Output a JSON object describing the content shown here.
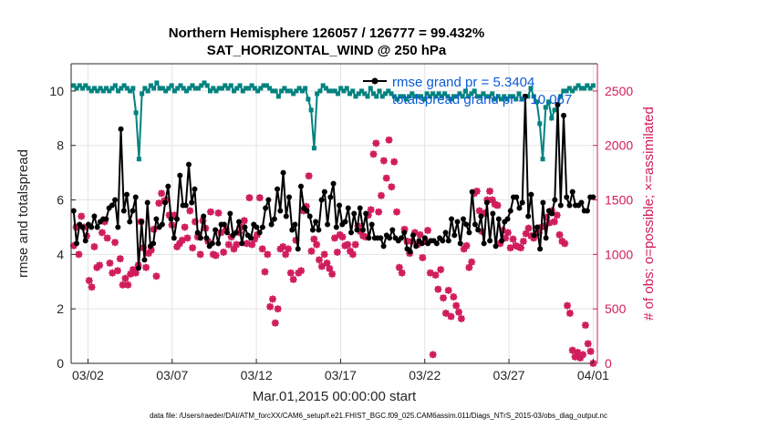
{
  "chart_data": {
    "type": "line",
    "title": "Northern Hemisphere 126057 / 126777 = 99.432%",
    "subtitle": "SAT_HORIZONTAL_WIND @ 250 hPa",
    "xlabel": "Mar.01,2015 00:00:00 start",
    "ylabel_left": "rmse and totalspread",
    "ylabel_right": "# of obs: o=possible; ×=assimilated",
    "x_tick_labels": [
      "03/02",
      "03/07",
      "03/12",
      "03/17",
      "03/22",
      "03/27",
      "04/01"
    ],
    "x_tick_days": [
      1,
      6,
      11,
      16,
      21,
      26,
      31
    ],
    "xlim_days": [
      0,
      31.25
    ],
    "y_left_ticks": [
      0,
      2,
      4,
      6,
      8,
      10
    ],
    "y_left_lim": [
      0,
      11
    ],
    "y_right_ticks": [
      0,
      500,
      1000,
      1500,
      2000,
      2500
    ],
    "y_right_lim": [
      0,
      2750
    ],
    "grid": true,
    "legend_position": "top-right",
    "colors": {
      "rmse": "#000000",
      "totalspread": "#00827f",
      "obs": "#d01c5c",
      "legend_text": "#0a5bd6",
      "right_axis": "#d01c5c"
    },
    "series": [
      {
        "name": "rmse grand pr = 5.3404",
        "axis": "left",
        "values": [
          5.6,
          4.4,
          5.1,
          5.0,
          4.5,
          5.1,
          5.0,
          5.4,
          5.0,
          5.2,
          5.3,
          5.3,
          5.7,
          5.8,
          6.0,
          5.0,
          8.6,
          5.6,
          6.2,
          5.2,
          5.6,
          6.1,
          3.5,
          5.2,
          3.8,
          5.9,
          4.3,
          4.4,
          5.3,
          5.0,
          5.1,
          5.9,
          6.5,
          5.3,
          4.6,
          5.3,
          6.9,
          5.8,
          5.8,
          7.3,
          5.9,
          6.4,
          4.8,
          4.6,
          5.4,
          4.6,
          4.3,
          4.4,
          4.9,
          4.4,
          5.1,
          5.1,
          4.8,
          5.5,
          4.7,
          4.8,
          5.2,
          4.4,
          5.0,
          4.7,
          4.6,
          5.1,
          5.0,
          4.8,
          5.0,
          5.7,
          6.0,
          5.1,
          5.3,
          6.4,
          5.6,
          7.0,
          5.4,
          6.1,
          4.9,
          5.1,
          4.2,
          6.5,
          5.7,
          5.6,
          5.4,
          4.9,
          5.2,
          4.9,
          6.0,
          6.3,
          5.1,
          6.1,
          6.6,
          5.0,
          5.8,
          5.1,
          5.2,
          5.7,
          4.8,
          5.5,
          4.9,
          5.7,
          4.9,
          5.5,
          4.6,
          5.1,
          4.6,
          4.6,
          4.6,
          4.3,
          4.7,
          4.6,
          4.9,
          4.6,
          4.5,
          4.6,
          4.8,
          4.2,
          4.1,
          4.7,
          4.3,
          4.5,
          4.4,
          4.6,
          4.4,
          4.5,
          4.5,
          4.4,
          4.6,
          4.5,
          4.8,
          4.5,
          5.3,
          4.7,
          5.2,
          4.4,
          5.3,
          5.1,
          4.8,
          6.3,
          5.1,
          4.9,
          5.4,
          4.4,
          5.9,
          4.5,
          5.5,
          4.3,
          5.3,
          4.5,
          5.2,
          5.3,
          5.6,
          6.1,
          6.1,
          5.7,
          5.9,
          9.8,
          5.4,
          6.2,
          4.7,
          5.0,
          4.2,
          5.9,
          4.6,
          5.6,
          5.5,
          6.0,
          9.5,
          5.8,
          9.1,
          6.1,
          5.8,
          6.3,
          5.8,
          5.8,
          5.9,
          5.6,
          5.6,
          6.1,
          6.1
        ]
      },
      {
        "name": "totalspread grand pr = 10.067",
        "axis": "left",
        "values": [
          10.2,
          10.1,
          10.2,
          10.1,
          10.2,
          10.1,
          10.0,
          10.1,
          10.0,
          10.1,
          10.0,
          10.1,
          10.0,
          10.1,
          10.2,
          10.0,
          10.1,
          10.2,
          10.1,
          10.0,
          10.1,
          9.2,
          7.5,
          9.9,
          10.1,
          10.0,
          10.2,
          10.1,
          10.3,
          10.1,
          10.1,
          10.0,
          10.1,
          10.2,
          10.0,
          10.1,
          10.2,
          10.1,
          10.0,
          10.1,
          10.2,
          10.1,
          10.1,
          10.2,
          10.3,
          10.2,
          10.0,
          10.1,
          10.0,
          10.1,
          10.1,
          10.2,
          10.1,
          10.2,
          10.0,
          10.1,
          10.2,
          10.0,
          10.1,
          10.1,
          10.2,
          10.1,
          10.0,
          10.1,
          10.2,
          10.2,
          10.1,
          10.0,
          10.0,
          9.8,
          10.0,
          10.1,
          10.0,
          10.0,
          9.9,
          10.0,
          10.1,
          10.0,
          10.1,
          9.7,
          9.3,
          7.9,
          9.9,
          10.0,
          10.2,
          10.1,
          10.0,
          10.0,
          10.0,
          9.9,
          10.1,
          10.0,
          10.1,
          9.9,
          10.0,
          9.8,
          9.9,
          10.0,
          9.9,
          9.8,
          10.1,
          9.9,
          9.8,
          10.0,
          9.8,
          9.9,
          10.0,
          9.9,
          9.8,
          9.7,
          9.8,
          9.8,
          9.7,
          9.8,
          9.9,
          9.8,
          9.8,
          9.8,
          9.7,
          9.9,
          9.8,
          9.9,
          9.8,
          9.9,
          9.8,
          9.9,
          9.8,
          9.7,
          9.8,
          9.8,
          9.9,
          9.8,
          10.0,
          9.8,
          9.9,
          10.0,
          9.8,
          9.8,
          9.9,
          9.8,
          9.8,
          9.9,
          9.7,
          9.8,
          9.7,
          9.8,
          9.7,
          9.8,
          9.8,
          9.7,
          9.9,
          9.7,
          9.8,
          9.8,
          10.1,
          9.8,
          9.6,
          8.8,
          7.5,
          9.4,
          9.6,
          9.0,
          9.3,
          9.5,
          9.8,
          10.0,
          10.0,
          10.1,
          10.0,
          10.1,
          10.2,
          10.1,
          10.1,
          10.2,
          10.1,
          10.2
        ]
      },
      {
        "name": "# of obs",
        "axis": "right",
        "values": [
          1080,
          1250,
          1000,
          1350,
          1250,
          1170,
          760,
          700,
          1070,
          880,
          900,
          1200,
          1300,
          1150,
          920,
          830,
          1110,
          850,
          960,
          720,
          780,
          720,
          820,
          860,
          830,
          900,
          1300,
          1060,
          880,
          1010,
          1040,
          1230,
          800,
          1470,
          1560,
          1490,
          1500,
          1360,
          1270,
          1360,
          1070,
          1100,
          1130,
          1250,
          1150,
          1400,
          1060,
          1300,
          1160,
          1000,
          1310,
          1240,
          1120,
          1390,
          1000,
          990,
          1380,
          1200,
          1020,
          1230,
          1090,
          1160,
          1050,
          1090,
          1200,
          1250,
          1310,
          1100,
          1520,
          1090,
          1140,
          1180,
          1520,
          1050,
          840,
          1000,
          520,
          590,
          370,
          500,
          1050,
          1070,
          1000,
          1050,
          830,
          770,
          1130,
          830,
          850,
          1400,
          1440,
          1720,
          1030,
          1140,
          1090,
          950,
          890,
          1000,
          920,
          870,
          820,
          1150,
          1020,
          1180,
          1160,
          1080,
          1090,
          1030,
          1000,
          1090,
          1260,
          1210,
          1170,
          1160,
          1360,
          1410,
          1920,
          2020,
          1390,
          1540,
          1860,
          1700,
          2050,
          1620,
          1850,
          1390,
          880,
          830,
          1230,
          1120,
          1010,
          1120,
          1200,
          1090,
          1180,
          970,
          1120,
          1220,
          830,
          80,
          810,
          680,
          860,
          600,
          460,
          670,
          430,
          610,
          530,
          470,
          410,
          1050,
          1080,
          880,
          930,
          1560,
          1580,
          1400,
          1210,
          1380,
          1500,
          1580,
          1500,
          1460,
          1450,
          1100,
          1220,
          1150,
          1200,
          1060,
          1140,
          1080,
          1070,
          1060,
          1120,
          1190,
          1240,
          1170,
          1150,
          1190,
          1200,
          1250,
          1260,
          1340,
          1290,
          1400,
          1300,
          1360,
          1180,
          1120,
          1100,
          530,
          460,
          120,
          60,
          100,
          50,
          80,
          350,
          180,
          110,
          0
        ]
      }
    ],
    "legend": [
      "rmse grand pr = 5.3404",
      "totalspread grand pr = 10.067"
    ],
    "footnote": "data file: /Users/raeder/DAI/ATM_forcXX/CAM6_setup/f.e21.FHIST_BGC.f09_025.CAM6assim.011/Diags_NTrS_2015-03/obs_diag_output.nc"
  }
}
